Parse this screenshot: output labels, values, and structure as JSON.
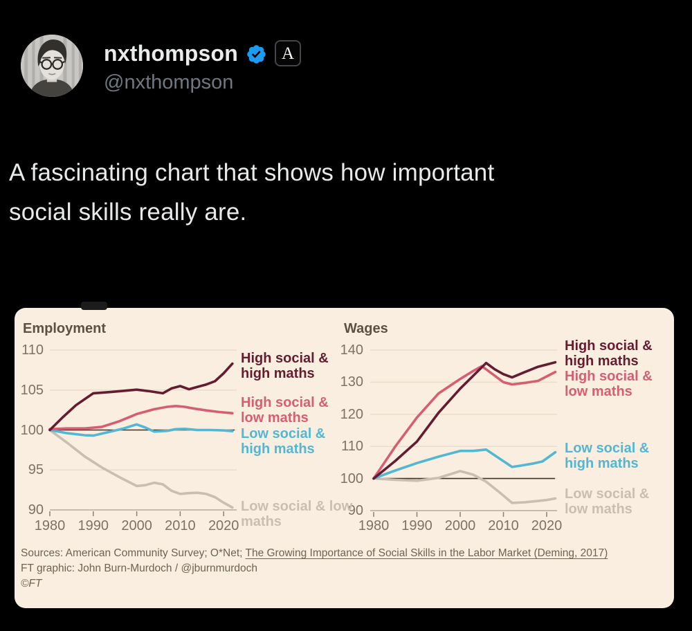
{
  "header": {
    "display_name": "nxthompson",
    "handle": "@nxthompson",
    "affiliate_badge_letter": "A",
    "verified_color": "#1d9bf0"
  },
  "tweet": {
    "text": "A fascinating chart that shows how important social skills really are.",
    "line1": "A fascinating chart that shows how important",
    "line2": "social skills really are."
  },
  "card": {
    "background_color": "#faeee0",
    "sources_prefix": "Sources: American Community Survey; O*Net; ",
    "sources_link": "The Growing Importance of Social Skills in the Labor Market (Deming, 2017)",
    "credit_line": "FT graphic: John Burn-Murdoch / @jburnmurdoch",
    "copyright": "©FT"
  },
  "chart_data": [
    {
      "type": "line",
      "title": "Employment",
      "xlabel": "",
      "ylabel": "",
      "xlim": [
        1980,
        2022.5
      ],
      "ylim": [
        90,
        110
      ],
      "yticks": [
        110,
        105,
        100,
        95,
        90
      ],
      "xticks": [
        1980,
        1990,
        2000,
        2010,
        2020
      ],
      "baseline": 100,
      "grid": true,
      "legend_position": "right-of-lines",
      "series": [
        {
          "name": "High social & high maths",
          "color": "#641c30",
          "x": [
            1980,
            1983,
            1986,
            1990,
            1994,
            1998,
            2000,
            2003,
            2006,
            2008,
            2010,
            2012,
            2014,
            2016,
            2018,
            2020,
            2022
          ],
          "values": [
            100,
            101.6,
            103.1,
            104.6,
            104.75,
            104.95,
            105.05,
            104.85,
            104.6,
            105.2,
            105.5,
            105.1,
            105.4,
            105.7,
            106.1,
            107.1,
            108.3
          ]
        },
        {
          "name": "High social & low maths",
          "color": "#d55f72",
          "x": [
            1980,
            1984,
            1988,
            1992,
            1996,
            2000,
            2004,
            2007,
            2009,
            2011,
            2013,
            2016,
            2019,
            2022
          ],
          "values": [
            100.1,
            100.2,
            100.2,
            100.4,
            101.1,
            102,
            102.6,
            102.9,
            103,
            102.9,
            102.7,
            102.45,
            102.25,
            102.1
          ]
        },
        {
          "name": "Low social & high maths",
          "color": "#52b7d3",
          "x": [
            1980,
            1984,
            1988,
            1990,
            1994,
            1997,
            2000,
            2002,
            2004,
            2007,
            2009,
            2011,
            2014,
            2017,
            2020,
            2022
          ],
          "values": [
            100,
            99.6,
            99.35,
            99.3,
            99.8,
            100.2,
            100.7,
            100.3,
            99.8,
            99.9,
            100.1,
            100.15,
            100,
            100,
            99.95,
            99.85
          ]
        },
        {
          "name": "Low social & low maths",
          "color": "#c8bfb2",
          "x": [
            1980,
            1984,
            1988,
            1992,
            1996,
            2000,
            2002,
            2004,
            2006,
            2008,
            2010,
            2012,
            2014,
            2016,
            2018,
            2020,
            2022
          ],
          "values": [
            100,
            98.4,
            96.7,
            95.3,
            94.1,
            93,
            93.1,
            93.4,
            93.2,
            92.4,
            92,
            92.1,
            92.15,
            92,
            91.6,
            90.9,
            90.3
          ]
        }
      ]
    },
    {
      "type": "line",
      "title": "Wages",
      "xlabel": "",
      "ylabel": "",
      "xlim": [
        1980,
        2022.5
      ],
      "ylim": [
        90,
        140
      ],
      "yticks": [
        140,
        130,
        120,
        110,
        100,
        90
      ],
      "xticks": [
        1980,
        1990,
        2000,
        2010,
        2020
      ],
      "baseline": 100,
      "grid": true,
      "legend_position": "right-of-lines",
      "series": [
        {
          "name": "High social & high maths",
          "color": "#641c30",
          "x": [
            1980,
            1985,
            1990,
            1995,
            2000,
            2003,
            2006,
            2008,
            2010,
            2012,
            2015,
            2018,
            2022
          ],
          "values": [
            100,
            105.5,
            111.5,
            120.5,
            128,
            132,
            136,
            134,
            132.5,
            131.5,
            133.2,
            134.8,
            136.2
          ]
        },
        {
          "name": "High social & low maths",
          "color": "#d55f72",
          "x": [
            1980,
            1985,
            1990,
            1995,
            2000,
            2003,
            2005,
            2008,
            2010,
            2012,
            2015,
            2018,
            2022
          ],
          "values": [
            100,
            110,
            119,
            126.5,
            131,
            133.5,
            135,
            132,
            130,
            129.3,
            129.8,
            130.4,
            133.2
          ]
        },
        {
          "name": "Low social & high maths",
          "color": "#52b7d3",
          "x": [
            1980,
            1985,
            1990,
            1995,
            2000,
            2003,
            2006,
            2009,
            2012,
            2014,
            2017,
            2019,
            2022
          ],
          "values": [
            100,
            102.5,
            104.8,
            106.8,
            108.6,
            108.6,
            109,
            106.3,
            103.6,
            104,
            104.7,
            105.3,
            108.2
          ]
        },
        {
          "name": "Low social & low maths",
          "color": "#c8bfb2",
          "x": [
            1980,
            1985,
            1990,
            1995,
            2000,
            2003,
            2006,
            2009,
            2012,
            2015,
            2018,
            2020,
            2022
          ],
          "values": [
            100,
            99.6,
            99.3,
            100.2,
            102.3,
            101.2,
            99,
            95.8,
            92.4,
            92.6,
            93,
            93.3,
            93.8
          ]
        }
      ]
    }
  ]
}
